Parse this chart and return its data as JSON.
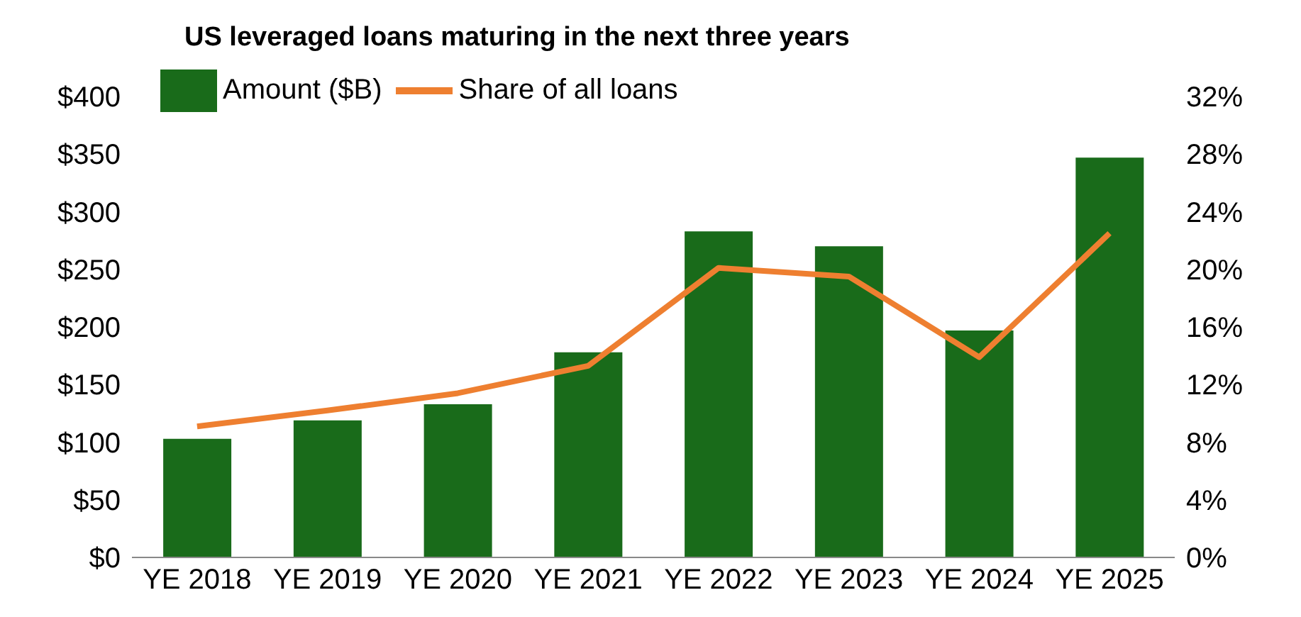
{
  "chart_data": {
    "type": "bar",
    "title": "US leveraged loans maturing in the next three years",
    "categories": [
      "YE 2018",
      "YE 2019",
      "YE 2020",
      "YE 2021",
      "YE 2022",
      "YE 2023",
      "YE 2024",
      "YE 2025"
    ],
    "series": [
      {
        "name": "Amount ($B)",
        "color": "#196b1a",
        "values": [
          103,
          119,
          133,
          178,
          283,
          270,
          197,
          347
        ]
      },
      {
        "name": "Share of all loans",
        "type": "line",
        "axis": "y2",
        "color": "#ee7f30",
        "values": [
          9.1,
          10.2,
          11.4,
          13.3,
          20.1,
          19.5,
          13.9,
          22.5
        ]
      }
    ],
    "ylim": [
      0,
      400
    ],
    "yticks": [
      {
        "value": 0,
        "label": "$0"
      },
      {
        "value": 50,
        "label": "$50"
      },
      {
        "value": 100,
        "label": "$100"
      },
      {
        "value": 150,
        "label": "$150"
      },
      {
        "value": 200,
        "label": "$200"
      },
      {
        "value": 250,
        "label": "$250"
      },
      {
        "value": 300,
        "label": "$300"
      },
      {
        "value": 350,
        "label": "$350"
      },
      {
        "value": 400,
        "label": "$400"
      }
    ],
    "y2lim": [
      0,
      32
    ],
    "y2ticks": [
      {
        "value": 0,
        "label": "0%"
      },
      {
        "value": 4,
        "label": "4%"
      },
      {
        "value": 8,
        "label": "8%"
      },
      {
        "value": 12,
        "label": "12%"
      },
      {
        "value": 16,
        "label": "16%"
      },
      {
        "value": 20,
        "label": "20%"
      },
      {
        "value": 24,
        "label": "24%"
      },
      {
        "value": 28,
        "label": "28%"
      },
      {
        "value": 32,
        "label": "32%"
      }
    ],
    "legend": "top left",
    "grid": false,
    "marker": "none",
    "line_style": "solid"
  }
}
